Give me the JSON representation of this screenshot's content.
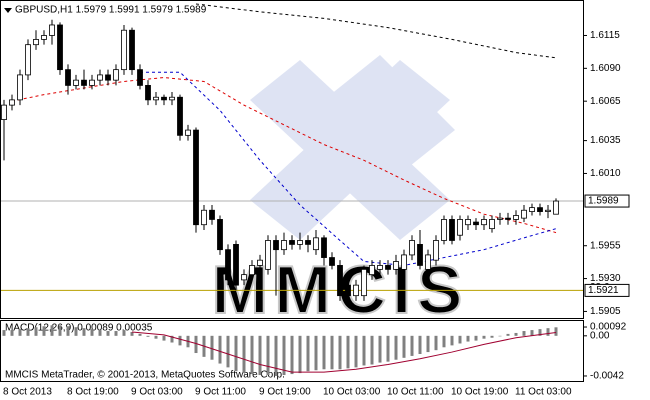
{
  "chart_data": [
    {
      "type": "candlestick",
      "title": "GBPUSD,H1 1.5979 1.5991 1.5979 1.5989",
      "watermark": "MMCIS",
      "copyright": "MMCIS MetaTrader, © 2001-2013, MetaQuotes Software Corp.",
      "categories": [
        "8 Oct 2013",
        null,
        null,
        null,
        null,
        null,
        null,
        null,
        "8 Oct 19:00",
        null,
        null,
        null,
        null,
        null,
        null,
        null,
        "9 Oct 03:00",
        null,
        null,
        null,
        null,
        null,
        null,
        null,
        "9 Oct 11:00",
        null,
        null,
        null,
        null,
        null,
        null,
        null,
        "9 Oct 19:00",
        null,
        null,
        null,
        null,
        null,
        null,
        null,
        "10 Oct 03:00",
        null,
        null,
        null,
        null,
        null,
        null,
        null,
        "10 Oct 11:00",
        null,
        null,
        null,
        null,
        null,
        null,
        null,
        "10 Oct 19:00",
        null,
        null,
        null,
        null,
        null,
        null,
        null,
        "11 Oct 03:00",
        null,
        null,
        null,
        null,
        null
      ],
      "open": [
        1.6051,
        1.6062,
        1.6066,
        1.6085,
        1.6108,
        1.6112,
        1.6115,
        1.6123,
        1.6089,
        1.6077,
        1.6081,
        1.6077,
        1.6081,
        1.6085,
        1.6081,
        1.6089,
        1.6119,
        1.6089,
        1.6077,
        1.6066,
        1.6068,
        1.6066,
        1.6068,
        1.6039,
        1.6043,
        1.5971,
        1.5982,
        1.5975,
        1.5952,
        1.5956,
        1.5929,
        1.5933,
        1.594,
        1.5937,
        1.5959,
        1.5952,
        1.5959,
        1.5956,
        1.5959,
        1.5952,
        1.5961,
        1.5946,
        1.594,
        1.5925,
        1.5917,
        1.5917,
        1.5933,
        1.5937,
        1.594,
        1.5937,
        1.5937,
        1.5948,
        1.5956,
        1.5937,
        1.5944,
        1.5959,
        1.5975,
        1.5963,
        1.5971,
        1.5973,
        1.5971,
        1.5968,
        1.5975,
        1.5976,
        1.5975,
        1.5976,
        1.5981,
        1.5984,
        1.5981,
        1.5979
      ],
      "high": [
        1.6066,
        1.607,
        1.6089,
        1.6112,
        1.6119,
        1.6119,
        1.6127,
        1.6125,
        1.6093,
        1.6085,
        1.6089,
        1.6085,
        1.6089,
        1.6089,
        1.6093,
        1.6123,
        1.6121,
        1.6093,
        1.6081,
        1.6072,
        1.607,
        1.6072,
        1.607,
        1.6047,
        1.6045,
        1.5986,
        1.5986,
        1.5978,
        1.5956,
        1.5959,
        1.5937,
        1.5944,
        1.5948,
        1.5963,
        1.5963,
        1.5965,
        1.5963,
        1.5965,
        1.5963,
        1.5967,
        1.5963,
        1.595,
        1.5944,
        1.5929,
        1.5929,
        1.594,
        1.5944,
        1.5944,
        1.5944,
        1.5948,
        1.5952,
        1.5963,
        1.5967,
        1.5952,
        1.5963,
        1.5978,
        1.5978,
        1.5978,
        1.5978,
        1.5976,
        1.5978,
        1.5978,
        1.598,
        1.598,
        1.5982,
        1.5986,
        1.5987,
        1.5987,
        1.5986,
        1.5991
      ],
      "low": [
        1.602,
        1.6058,
        1.6062,
        1.6081,
        1.6104,
        1.6108,
        1.6108,
        1.6085,
        1.607,
        1.6074,
        1.6074,
        1.6074,
        1.6077,
        1.6077,
        1.6077,
        1.6085,
        1.6085,
        1.6074,
        1.6062,
        1.6062,
        1.6062,
        1.6062,
        1.6035,
        1.6035,
        1.5965,
        1.5967,
        1.5971,
        1.5948,
        1.5925,
        1.5921,
        1.5925,
        1.5929,
        1.5937,
        1.5933,
        1.5917,
        1.5948,
        1.5952,
        1.5952,
        1.595,
        1.5948,
        1.594,
        1.5937,
        1.5913,
        1.5913,
        1.5913,
        1.5913,
        1.5929,
        1.5933,
        1.5933,
        1.5933,
        1.5933,
        1.5944,
        1.5937,
        1.5933,
        1.594,
        1.5956,
        1.5956,
        1.5959,
        1.5967,
        1.5967,
        1.5967,
        1.5965,
        1.5971,
        1.5971,
        1.5971,
        1.5973,
        1.5978,
        1.5978,
        1.5976,
        1.5979
      ],
      "close": [
        1.6062,
        1.6066,
        1.6085,
        1.6108,
        1.6112,
        1.6115,
        1.6123,
        1.6089,
        1.6077,
        1.6081,
        1.6077,
        1.6081,
        1.6085,
        1.6081,
        1.6089,
        1.6119,
        1.6089,
        1.6077,
        1.6066,
        1.6068,
        1.6066,
        1.6068,
        1.6039,
        1.6043,
        1.5971,
        1.5982,
        1.5975,
        1.5952,
        1.5929,
        1.5925,
        1.5933,
        1.594,
        1.5944,
        1.5959,
        1.5952,
        1.5959,
        1.5956,
        1.5959,
        1.5956,
        1.5961,
        1.5946,
        1.594,
        1.5917,
        1.5917,
        1.5925,
        1.5937,
        1.594,
        1.594,
        1.5937,
        1.5943,
        1.5948,
        1.5959,
        1.594,
        1.5948,
        1.5959,
        1.5975,
        1.5959,
        1.5975,
        1.5975,
        1.5971,
        1.5975,
        1.5975,
        1.5976,
        1.5975,
        1.5978,
        1.5982,
        1.5984,
        1.5981,
        1.5982,
        1.5989
      ],
      "series": [
        {
          "color": "#dd0000",
          "x": [
            1,
            5,
            10,
            15,
            20,
            25,
            30,
            35,
            40,
            45,
            50,
            55,
            60,
            65,
            69
          ],
          "values": [
            1.6065,
            1.607,
            1.6075,
            1.608,
            1.6083,
            1.608,
            1.6062,
            1.6047,
            1.6032,
            1.602,
            1.6005,
            1.5991,
            1.5979,
            1.5972,
            1.5965
          ]
        },
        {
          "color": "#0000cc",
          "x": [
            17,
            22,
            27,
            32,
            37,
            42,
            45,
            50,
            55,
            60,
            65,
            69
          ],
          "values": [
            1.6087,
            1.6087,
            1.6058,
            1.602,
            1.5986,
            1.5959,
            1.5943,
            1.594,
            1.5946,
            1.5952,
            1.5961,
            1.5968
          ]
        },
        {
          "color": "#000000",
          "x": [
            24,
            32,
            40,
            48,
            56,
            64,
            69
          ],
          "values": [
            1.6139,
            1.6133,
            1.6128,
            1.6121,
            1.6112,
            1.6102,
            1.6098
          ]
        }
      ],
      "current_price": 1.5989,
      "fib_level": {
        "ratio": 23.6,
        "price": 1.5921
      },
      "ylim": [
        1.59,
        1.6142
      ],
      "yticks": [
        1.6115,
        {
          "value": 1.609,
          "label": "1.6090"
        },
        1.6065,
        1.6035,
        {
          "value": 1.601,
          "label": "1.6010"
        },
        1.5955,
        {
          "value": 1.593,
          "label": "1.5930"
        },
        1.5905
      ],
      "bull_color": "#ffffff",
      "bear_color": "#000000"
    },
    {
      "type": "bar",
      "title": "MACD(12,26,9) 0.00089 0.00035",
      "values": [
        0.0006,
        0.0006,
        0.0007,
        0.0008,
        0.0009,
        0.001,
        0.0011,
        0.0011,
        0.001,
        0.0009,
        0.0008,
        0.0007,
        0.0006,
        0.0005,
        0.0005,
        0.0006,
        0.0004,
        0.0002,
        -0.0001,
        -0.0003,
        -0.0005,
        -0.0007,
        -0.001,
        -0.0012,
        -0.0018,
        -0.0022,
        -0.0025,
        -0.0029,
        -0.0033,
        -0.0037,
        -0.0039,
        -0.004,
        -0.0041,
        -0.0041,
        -0.0042,
        -0.0041,
        -0.004,
        -0.0039,
        -0.0037,
        -0.0036,
        -0.0035,
        -0.0035,
        -0.0035,
        -0.0034,
        -0.0033,
        -0.0031,
        -0.003,
        -0.0028,
        -0.0027,
        -0.0025,
        -0.0023,
        -0.0021,
        -0.0019,
        -0.0017,
        -0.0015,
        -0.0012,
        -0.001,
        -0.0008,
        -0.0006,
        -0.0005,
        -0.0003,
        -0.0002,
        0,
        0.0002,
        0.0003,
        0.0005,
        0.0006,
        0.0007,
        0.0008,
        0.00089
      ],
      "color": "#808080",
      "signal": {
        "color": "#a00030",
        "x": [
          16,
          20,
          24,
          28,
          32,
          36,
          40,
          44,
          48,
          52,
          56,
          60,
          64,
          69
        ],
        "values": [
          0.0004,
          0.0001,
          -0.0008,
          -0.0019,
          -0.003,
          -0.0038,
          -0.0038,
          -0.0035,
          -0.003,
          -0.0024,
          -0.0017,
          -0.0009,
          -0.0002,
          0.00035
        ]
      },
      "ylim": [
        -0.00483,
        0.00155
      ],
      "yticks": [
        0.00092,
        {
          "value": 0,
          "label": "0.00"
        },
        -0.0042
      ]
    }
  ]
}
